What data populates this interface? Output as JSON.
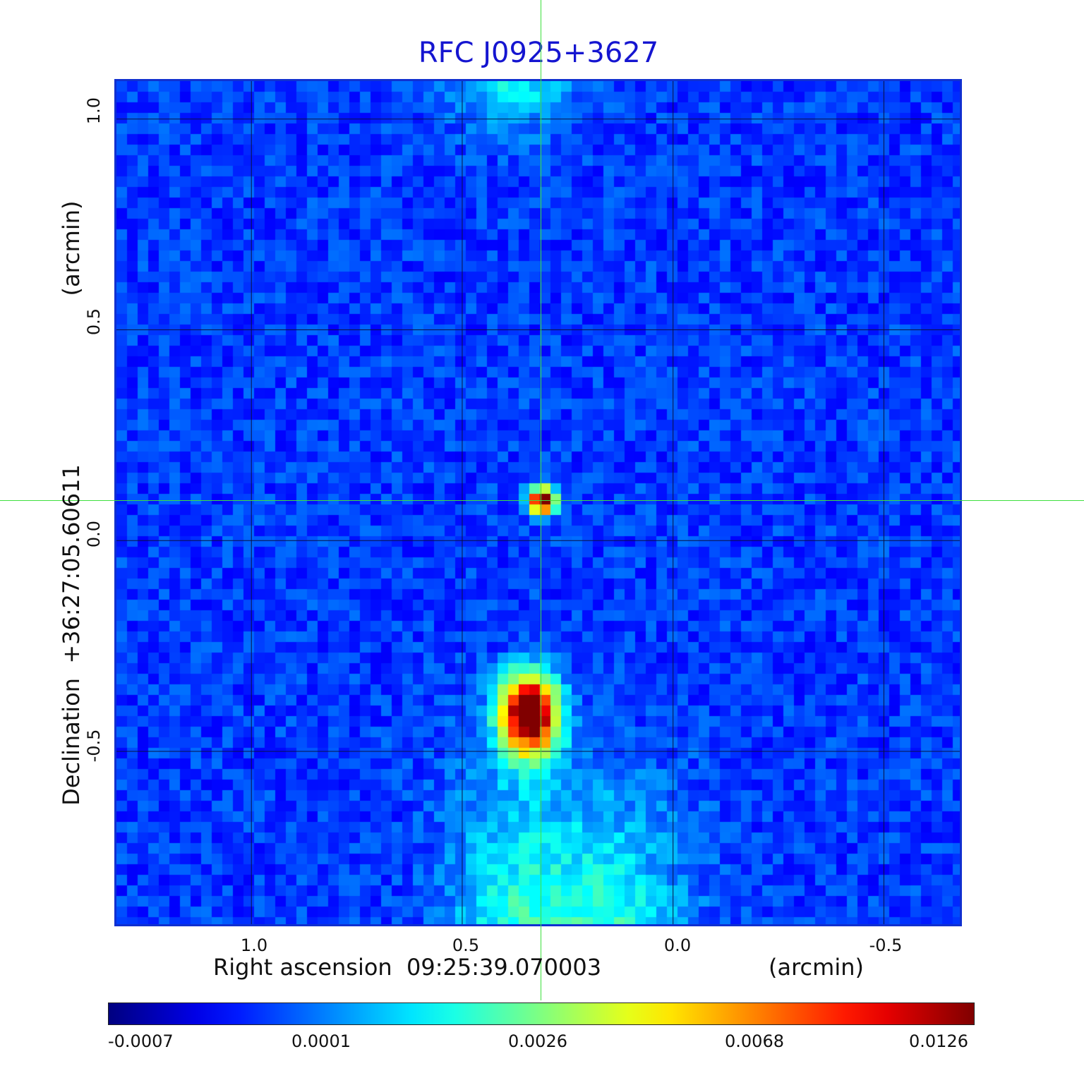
{
  "title": "RFC J0925+3627",
  "xaxis": {
    "label": "Right ascension  09:25:39.070003",
    "unit": "(arcmin)",
    "ticks": [
      "1.0",
      "0.5",
      "0.0",
      "-0.5"
    ]
  },
  "yaxis": {
    "label": "Declination  +36:27:05.60611",
    "unit": "(arcmin)",
    "ticks": [
      "1.0",
      "0.5",
      "0.0",
      "-0.5"
    ]
  },
  "colorbar": {
    "colormap": "jet",
    "ticks": [
      "-0.0007",
      "0.0001",
      "0.0026",
      "0.0068",
      "0.0126"
    ]
  },
  "chart_data": {
    "type": "heatmap",
    "title": "RFC J0925+3627",
    "xlabel": "Right ascension  09:25:39.070003",
    "ylabel": "Declination  +36:27:05.60611",
    "units": "arcmin",
    "x_range": [
      1.32,
      -0.68
    ],
    "y_range": [
      -0.91,
      1.09
    ],
    "grid": true,
    "colorbar_ticks": [
      -0.0007,
      0.0001,
      0.0026,
      0.0068,
      0.0126
    ],
    "crosshair": {
      "x": 0.31,
      "y": 0.095
    },
    "sources": [
      {
        "x": 0.31,
        "y": 0.095,
        "peak": 0.0126
      },
      {
        "x": 0.34,
        "y": -0.41,
        "peak": 0.0126
      }
    ]
  },
  "colors": {
    "title": "#1515d0",
    "frame": "#1030d0",
    "crosshair": "#3ee03e",
    "grid": "#0a1040"
  }
}
